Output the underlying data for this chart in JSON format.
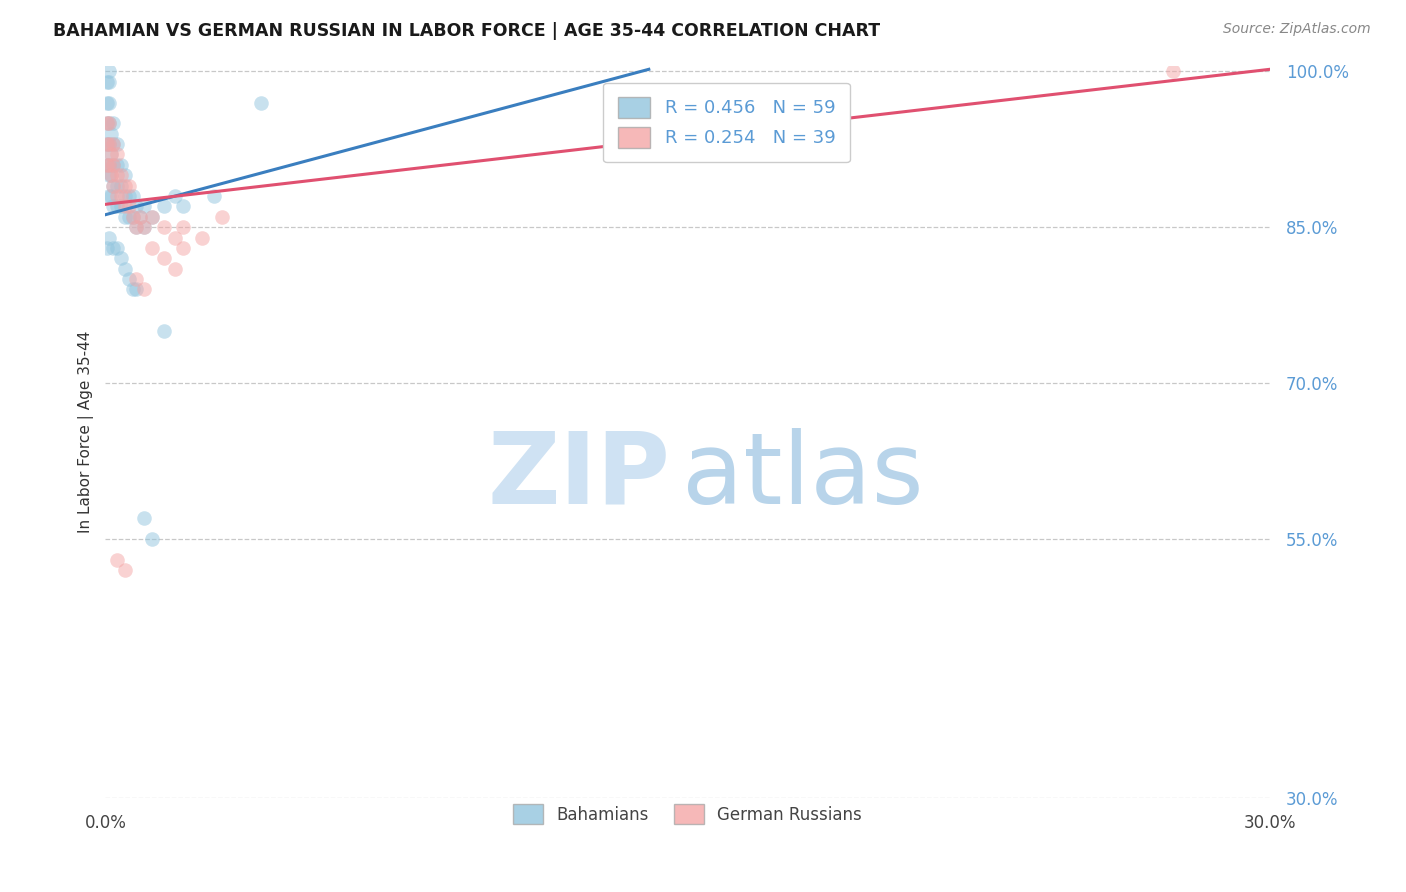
{
  "title": "BAHAMIAN VS GERMAN RUSSIAN IN LABOR FORCE | AGE 35-44 CORRELATION CHART",
  "source": "Source: ZipAtlas.com",
  "ylabel": "In Labor Force | Age 35-44",
  "x_min": 0.0,
  "x_max": 0.3,
  "y_min": 0.3,
  "y_max": 1.005,
  "x_ticks": [
    0.0,
    0.05,
    0.1,
    0.15,
    0.2,
    0.25,
    0.3
  ],
  "y_ticks": [
    1.0,
    0.85,
    0.7,
    0.55,
    0.3
  ],
  "legend_blue": "R = 0.456   N = 59",
  "legend_pink": "R = 0.254   N = 39",
  "blue_color": "#92c5de",
  "pink_color": "#f4a6a6",
  "blue_line_color": "#3a7ebf",
  "pink_line_color": "#e05070",
  "blue_line_x": [
    0.0,
    0.14
  ],
  "blue_line_y": [
    0.862,
    1.002
  ],
  "pink_line_x": [
    0.0,
    0.3
  ],
  "pink_line_y": [
    0.872,
    1.002
  ],
  "bahamian_x": [
    0.0005,
    0.0005,
    0.0005,
    0.0005,
    0.0005,
    0.001,
    0.001,
    0.001,
    0.001,
    0.001,
    0.001,
    0.001,
    0.001,
    0.0015,
    0.0015,
    0.0015,
    0.0015,
    0.002,
    0.002,
    0.002,
    0.002,
    0.002,
    0.003,
    0.003,
    0.003,
    0.003,
    0.004,
    0.004,
    0.004,
    0.005,
    0.005,
    0.005,
    0.006,
    0.006,
    0.007,
    0.007,
    0.008,
    0.008,
    0.009,
    0.01,
    0.01,
    0.012,
    0.015,
    0.018,
    0.02,
    0.028,
    0.04,
    0.0005,
    0.001,
    0.002,
    0.003,
    0.004,
    0.005,
    0.006,
    0.007,
    0.008,
    0.01,
    0.012,
    0.015
  ],
  "bahamian_y": [
    0.91,
    0.93,
    0.95,
    0.97,
    0.99,
    0.88,
    0.9,
    0.91,
    0.93,
    0.95,
    0.97,
    0.99,
    1.0,
    0.88,
    0.9,
    0.92,
    0.94,
    0.87,
    0.89,
    0.91,
    0.93,
    0.95,
    0.87,
    0.89,
    0.91,
    0.93,
    0.87,
    0.89,
    0.91,
    0.86,
    0.88,
    0.9,
    0.86,
    0.88,
    0.86,
    0.88,
    0.85,
    0.87,
    0.86,
    0.85,
    0.87,
    0.86,
    0.87,
    0.88,
    0.87,
    0.88,
    0.97,
    0.83,
    0.84,
    0.83,
    0.83,
    0.82,
    0.81,
    0.8,
    0.79,
    0.79,
    0.57,
    0.55,
    0.75
  ],
  "german_russian_x": [
    0.0005,
    0.0005,
    0.0005,
    0.001,
    0.001,
    0.001,
    0.0015,
    0.0015,
    0.002,
    0.002,
    0.002,
    0.003,
    0.003,
    0.003,
    0.004,
    0.004,
    0.005,
    0.005,
    0.006,
    0.006,
    0.007,
    0.008,
    0.009,
    0.01,
    0.012,
    0.015,
    0.018,
    0.02,
    0.012,
    0.015,
    0.018,
    0.008,
    0.01,
    0.02,
    0.025,
    0.03,
    0.003,
    0.005,
    0.275
  ],
  "german_russian_y": [
    0.91,
    0.93,
    0.95,
    0.91,
    0.93,
    0.95,
    0.9,
    0.92,
    0.89,
    0.91,
    0.93,
    0.88,
    0.9,
    0.92,
    0.88,
    0.9,
    0.87,
    0.89,
    0.87,
    0.89,
    0.86,
    0.85,
    0.86,
    0.85,
    0.86,
    0.85,
    0.84,
    0.83,
    0.83,
    0.82,
    0.81,
    0.8,
    0.79,
    0.85,
    0.84,
    0.86,
    0.53,
    0.52,
    1.0
  ],
  "watermark_zip": "ZIP",
  "watermark_atlas": "atlas",
  "background_color": "#ffffff",
  "grid_color": "#c8c8c8",
  "legend_bottom_blue": "Bahamians",
  "legend_bottom_pink": "German Russians"
}
